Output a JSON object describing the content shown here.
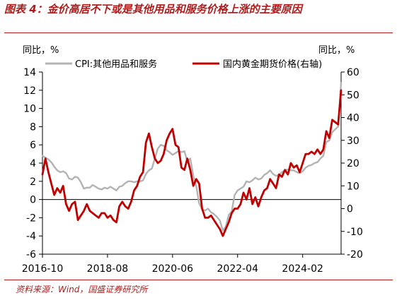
{
  "figure": {
    "title": "图表 4：金价高居不下或是其他用品和服务价格上涨的主要原因",
    "source": "资料来源：Wind，国盛证券研究所"
  },
  "colors": {
    "title": "#b01c1c",
    "cpi": "#b3b3b3",
    "gold": "#c00000",
    "axis": "#000000"
  },
  "chart_data": {
    "type": "line",
    "left_unit": "同比，%",
    "right_unit": "同比，%",
    "x_ticks": [
      "2016-10",
      "2018-08",
      "2020-06",
      "2022-04",
      "2024-02"
    ],
    "x_range": [
      "2016-10",
      "2025-03"
    ],
    "left_ylim": [
      -6,
      14
    ],
    "left_yticks": [
      -6,
      -4,
      -2,
      0,
      2,
      4,
      6,
      8,
      10,
      12,
      14
    ],
    "right_ylim": [
      -20,
      60
    ],
    "right_yticks": [
      -20,
      -10,
      0,
      10,
      20,
      30,
      40,
      50,
      60
    ],
    "legend": [
      "CPI:其他用品和服务",
      "国内黄金期货价格(右轴)"
    ],
    "series": [
      {
        "name": "CPI:其他用品和服务",
        "axis": "left",
        "data": [
          [
            "2016-10",
            4.8
          ],
          [
            "2016-11",
            4.6
          ],
          [
            "2016-12",
            4.4
          ],
          [
            "2017-01",
            4.1
          ],
          [
            "2017-02",
            3.6
          ],
          [
            "2017-03",
            3.2
          ],
          [
            "2017-04",
            3.0
          ],
          [
            "2017-05",
            3.1
          ],
          [
            "2017-06",
            2.9
          ],
          [
            "2017-07",
            2.3
          ],
          [
            "2017-08",
            2.2
          ],
          [
            "2017-09",
            2.5
          ],
          [
            "2017-10",
            2.4
          ],
          [
            "2017-11",
            1.9
          ],
          [
            "2017-12",
            1.2
          ],
          [
            "2018-01",
            1.3
          ],
          [
            "2018-02",
            1.3
          ],
          [
            "2018-03",
            1.6
          ],
          [
            "2018-04",
            1.4
          ],
          [
            "2018-05",
            1.2
          ],
          [
            "2018-06",
            1.1
          ],
          [
            "2018-07",
            1.3
          ],
          [
            "2018-08",
            1.2
          ],
          [
            "2018-09",
            1.4
          ],
          [
            "2018-10",
            1.2
          ],
          [
            "2018-11",
            1.0
          ],
          [
            "2018-12",
            1.4
          ],
          [
            "2019-01",
            1.5
          ],
          [
            "2019-02",
            1.8
          ],
          [
            "2019-03",
            2.0
          ],
          [
            "2019-04",
            2.0
          ],
          [
            "2019-05",
            1.9
          ],
          [
            "2019-06",
            2.0
          ],
          [
            "2019-07",
            2.0
          ],
          [
            "2019-08",
            2.1
          ],
          [
            "2019-09",
            2.8
          ],
          [
            "2019-10",
            3.2
          ],
          [
            "2019-11",
            3.4
          ],
          [
            "2019-12",
            4.5
          ],
          [
            "2020-01",
            5.6
          ],
          [
            "2020-02",
            6.0
          ],
          [
            "2020-03",
            5.9
          ],
          [
            "2020-04",
            5.4
          ],
          [
            "2020-05",
            5.2
          ],
          [
            "2020-06",
            4.9
          ],
          [
            "2020-07",
            5.1
          ],
          [
            "2020-08",
            5.3
          ],
          [
            "2020-09",
            5.2
          ],
          [
            "2020-10",
            5.3
          ],
          [
            "2020-11",
            4.2
          ],
          [
            "2020-12",
            4.5
          ],
          [
            "2021-01",
            2.6
          ],
          [
            "2021-02",
            1.5
          ],
          [
            "2021-03",
            -0.4
          ],
          [
            "2021-04",
            -1.1
          ],
          [
            "2021-05",
            -1.2
          ],
          [
            "2021-06",
            -1.0
          ],
          [
            "2021-07",
            -1.4
          ],
          [
            "2021-08",
            -1.6
          ],
          [
            "2021-09",
            -1.9
          ],
          [
            "2021-10",
            -2.3
          ],
          [
            "2021-11",
            -3.4
          ],
          [
            "2021-12",
            -3.0
          ],
          [
            "2022-01",
            -1.7
          ],
          [
            "2022-02",
            -1.3
          ],
          [
            "2022-03",
            0.5
          ],
          [
            "2022-04",
            1.0
          ],
          [
            "2022-05",
            1.2
          ],
          [
            "2022-06",
            1.4
          ],
          [
            "2022-07",
            2.0
          ],
          [
            "2022-08",
            1.9
          ],
          [
            "2022-09",
            2.1
          ],
          [
            "2022-10",
            2.4
          ],
          [
            "2022-11",
            2.2
          ],
          [
            "2022-12",
            2.3
          ],
          [
            "2023-01",
            2.7
          ],
          [
            "2023-02",
            2.9
          ],
          [
            "2023-03",
            3.2
          ],
          [
            "2023-04",
            2.8
          ],
          [
            "2023-05",
            2.6
          ],
          [
            "2023-06",
            2.7
          ],
          [
            "2023-07",
            3.0
          ],
          [
            "2023-08",
            3.2
          ],
          [
            "2023-09",
            3.3
          ],
          [
            "2023-10",
            3.2
          ],
          [
            "2023-11",
            3.2
          ],
          [
            "2023-12",
            3.0
          ],
          [
            "2024-01",
            2.9
          ],
          [
            "2024-02",
            3.1
          ],
          [
            "2024-03",
            3.5
          ],
          [
            "2024-04",
            3.7
          ],
          [
            "2024-05",
            3.8
          ],
          [
            "2024-06",
            4.0
          ],
          [
            "2024-07",
            4.1
          ],
          [
            "2024-08",
            4.5
          ],
          [
            "2024-09",
            4.8
          ],
          [
            "2024-10",
            6.3
          ],
          [
            "2024-11",
            6.5
          ],
          [
            "2024-12",
            7.4
          ],
          [
            "2025-01",
            7.7
          ],
          [
            "2025-02",
            8.0
          ],
          [
            "2025-03",
            12.8
          ]
        ]
      },
      {
        "name": "国内黄金期货价格(右轴)",
        "axis": "right",
        "data": [
          [
            "2016-10",
            15
          ],
          [
            "2016-11",
            22
          ],
          [
            "2016-12",
            16
          ],
          [
            "2017-01",
            11
          ],
          [
            "2017-02",
            6
          ],
          [
            "2017-03",
            9
          ],
          [
            "2017-04",
            7
          ],
          [
            "2017-05",
            10
          ],
          [
            "2017-06",
            2
          ],
          [
            "2017-07",
            -1
          ],
          [
            "2017-08",
            2
          ],
          [
            "2017-09",
            3
          ],
          [
            "2017-10",
            -5
          ],
          [
            "2017-11",
            -3
          ],
          [
            "2017-12",
            -1
          ],
          [
            "2018-01",
            2
          ],
          [
            "2018-02",
            -1
          ],
          [
            "2018-03",
            -2
          ],
          [
            "2018-04",
            -3
          ],
          [
            "2018-05",
            -4
          ],
          [
            "2018-06",
            -2
          ],
          [
            "2018-07",
            -2
          ],
          [
            "2018-08",
            -4
          ],
          [
            "2018-09",
            -3
          ],
          [
            "2018-10",
            -5
          ],
          [
            "2018-11",
            -6
          ],
          [
            "2018-12",
            1
          ],
          [
            "2019-01",
            3
          ],
          [
            "2019-02",
            1
          ],
          [
            "2019-03",
            0
          ],
          [
            "2019-04",
            3
          ],
          [
            "2019-05",
            8
          ],
          [
            "2019-06",
            10
          ],
          [
            "2019-07",
            14
          ],
          [
            "2019-08",
            16
          ],
          [
            "2019-09",
            29
          ],
          [
            "2019-10",
            33
          ],
          [
            "2019-11",
            27
          ],
          [
            "2019-12",
            22
          ],
          [
            "2020-01",
            20
          ],
          [
            "2020-02",
            21
          ],
          [
            "2020-03",
            24
          ],
          [
            "2020-04",
            30
          ],
          [
            "2020-05",
            33
          ],
          [
            "2020-06",
            35
          ],
          [
            "2020-07",
            28
          ],
          [
            "2020-08",
            27
          ],
          [
            "2020-09",
            18
          ],
          [
            "2020-10",
            17
          ],
          [
            "2020-11",
            22
          ],
          [
            "2020-12",
            17
          ],
          [
            "2021-01",
            10
          ],
          [
            "2021-02",
            13
          ],
          [
            "2021-03",
            11
          ],
          [
            "2021-04",
            0
          ],
          [
            "2021-05",
            -4
          ],
          [
            "2021-06",
            -4
          ],
          [
            "2021-07",
            -3
          ],
          [
            "2021-08",
            -5
          ],
          [
            "2021-09",
            -7
          ],
          [
            "2021-10",
            -9
          ],
          [
            "2021-11",
            -12
          ],
          [
            "2021-12",
            -9
          ],
          [
            "2022-01",
            -6
          ],
          [
            "2022-02",
            -2
          ],
          [
            "2022-03",
            0
          ],
          [
            "2022-04",
            0
          ],
          [
            "2022-05",
            2
          ],
          [
            "2022-06",
            7
          ],
          [
            "2022-07",
            4
          ],
          [
            "2022-08",
            9
          ],
          [
            "2022-09",
            2
          ],
          [
            "2022-10",
            5
          ],
          [
            "2022-11",
            1
          ],
          [
            "2022-12",
            5
          ],
          [
            "2023-01",
            8
          ],
          [
            "2023-02",
            9
          ],
          [
            "2023-03",
            13
          ],
          [
            "2023-04",
            11
          ],
          [
            "2023-05",
            9
          ],
          [
            "2023-06",
            15
          ],
          [
            "2023-07",
            14
          ],
          [
            "2023-08",
            17
          ],
          [
            "2023-09",
            15
          ],
          [
            "2023-10",
            20
          ],
          [
            "2023-11",
            18
          ],
          [
            "2023-12",
            19
          ],
          [
            "2024-01",
            16
          ],
          [
            "2024-02",
            20
          ],
          [
            "2024-03",
            24
          ],
          [
            "2024-04",
            24
          ],
          [
            "2024-05",
            25
          ],
          [
            "2024-06",
            24
          ],
          [
            "2024-07",
            26
          ],
          [
            "2024-08",
            24
          ],
          [
            "2024-09",
            26
          ],
          [
            "2024-10",
            34
          ],
          [
            "2024-11",
            31
          ],
          [
            "2024-12",
            39
          ],
          [
            "2025-01",
            38
          ],
          [
            "2025-02",
            37
          ],
          [
            "2025-03",
            52
          ]
        ]
      }
    ]
  }
}
